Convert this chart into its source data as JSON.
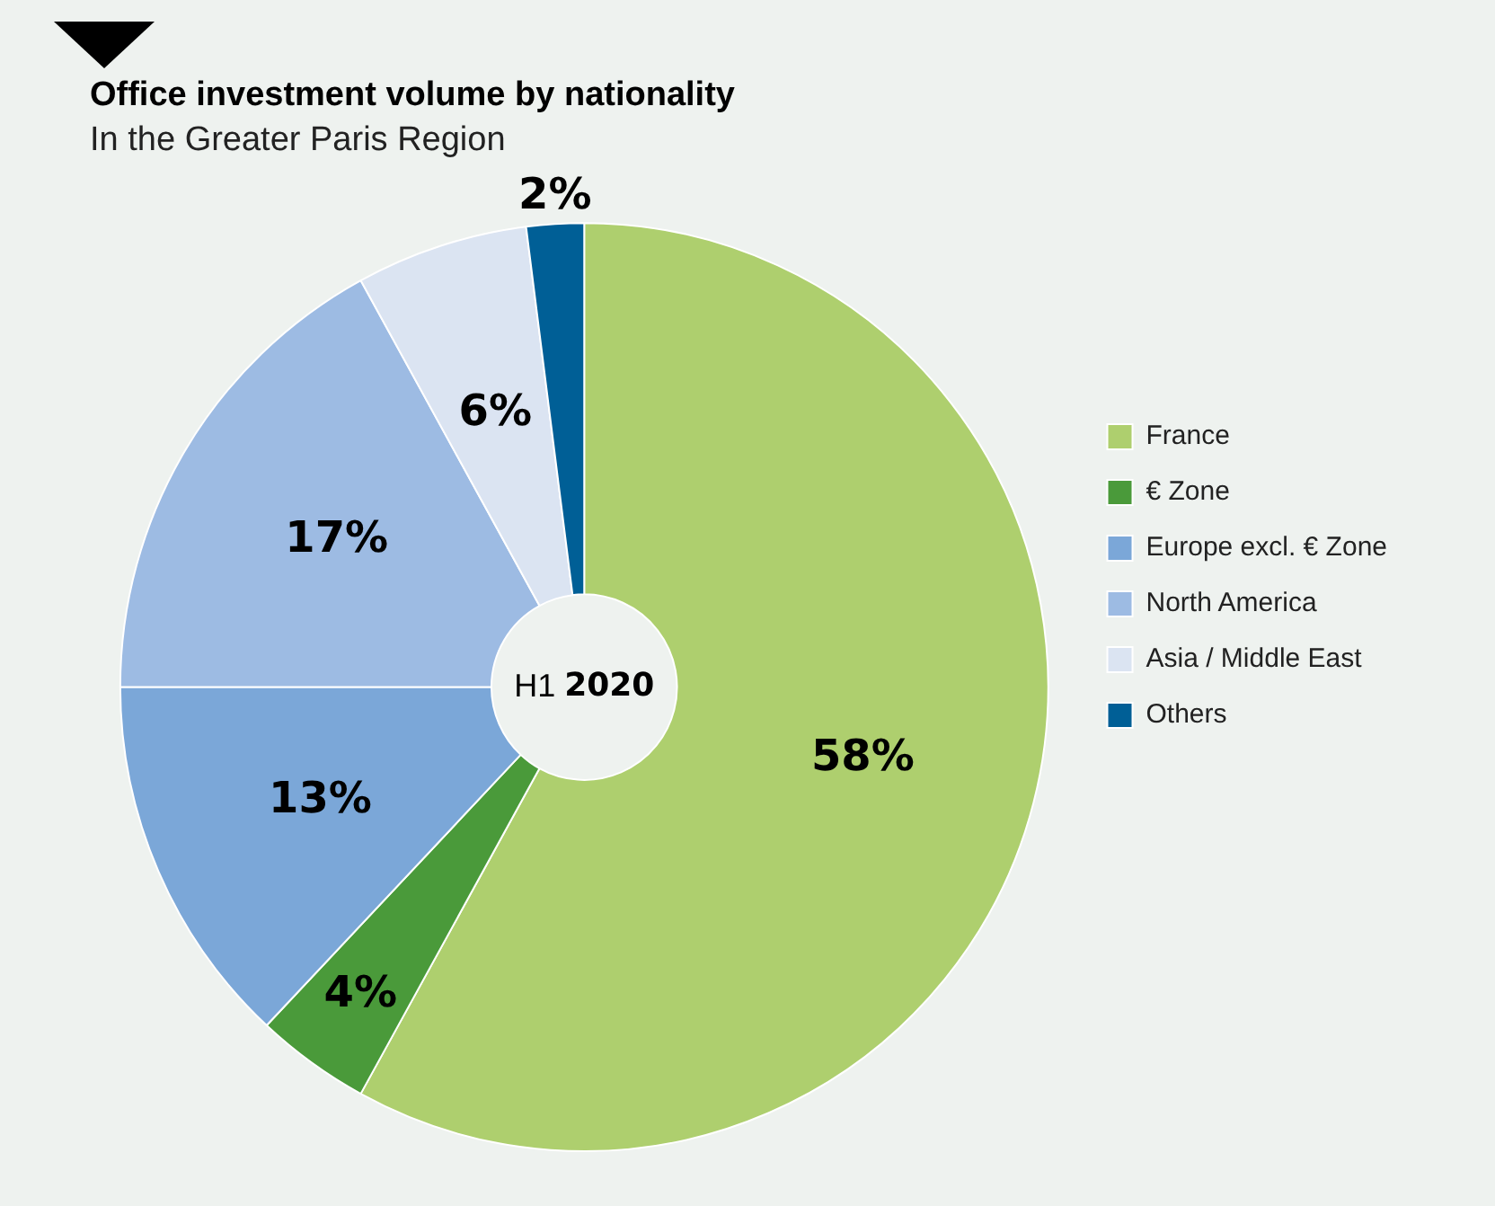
{
  "chart_data": {
    "type": "donut",
    "title": "Office investment volume by nationality",
    "subtitle": "In the Greater Paris Region",
    "categories": [
      "France",
      "€ Zone",
      "Europe excl. € Zone",
      "North America",
      "Asia / Middle East",
      "Others"
    ],
    "values": [
      58,
      4,
      13,
      17,
      6,
      2
    ],
    "colors": [
      "#aecf6e",
      "#4a9a3a",
      "#7ba7d8",
      "#9dbbe3",
      "#dbe4f2",
      "#005f96"
    ],
    "value_labels": [
      "58%",
      "4%",
      "13%",
      "17%",
      "6%",
      "2%"
    ],
    "annotations": [
      "H1 2020"
    ],
    "legend": "right"
  }
}
